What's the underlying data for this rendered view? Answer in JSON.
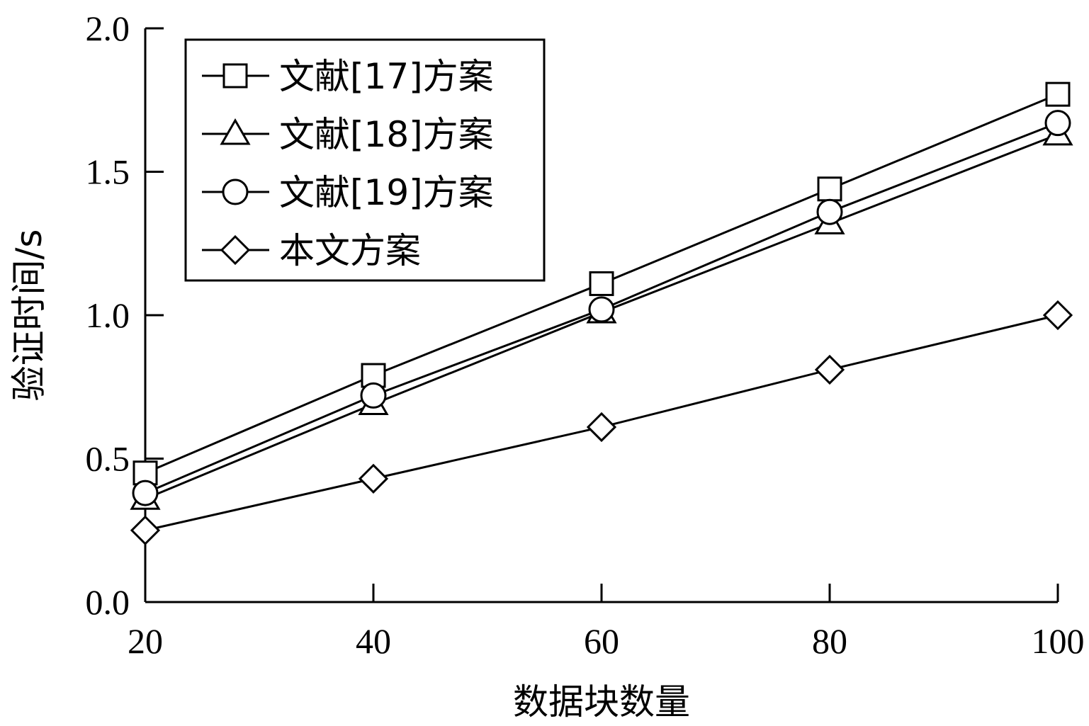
{
  "chart_data": {
    "type": "line",
    "title": "",
    "xlabel": "数据块数量",
    "ylabel": "验证时间/s",
    "x": [
      20,
      40,
      60,
      80,
      100
    ],
    "xlim": [
      20,
      100
    ],
    "ylim": [
      0.0,
      2.0
    ],
    "xticks": [
      "20",
      "40",
      "60",
      "80",
      "100"
    ],
    "yticks": [
      "0.0",
      "0.5",
      "1.0",
      "1.5",
      "2.0"
    ],
    "grid": false,
    "legend_position": "top-left",
    "series": [
      {
        "name": "文献[17]方案",
        "marker": "square",
        "values": [
          0.45,
          0.79,
          1.11,
          1.44,
          1.77
        ]
      },
      {
        "name": "文献[18]方案",
        "marker": "triangle",
        "values": [
          0.36,
          0.69,
          1.01,
          1.32,
          1.63
        ]
      },
      {
        "name": "文献[19]方案",
        "marker": "circle",
        "values": [
          0.38,
          0.72,
          1.02,
          1.36,
          1.67
        ]
      },
      {
        "name": "本文方案",
        "marker": "diamond",
        "values": [
          0.25,
          0.43,
          0.61,
          0.81,
          1.0
        ]
      }
    ],
    "colors": {
      "line": "#000000",
      "background": "#ffffff"
    }
  }
}
